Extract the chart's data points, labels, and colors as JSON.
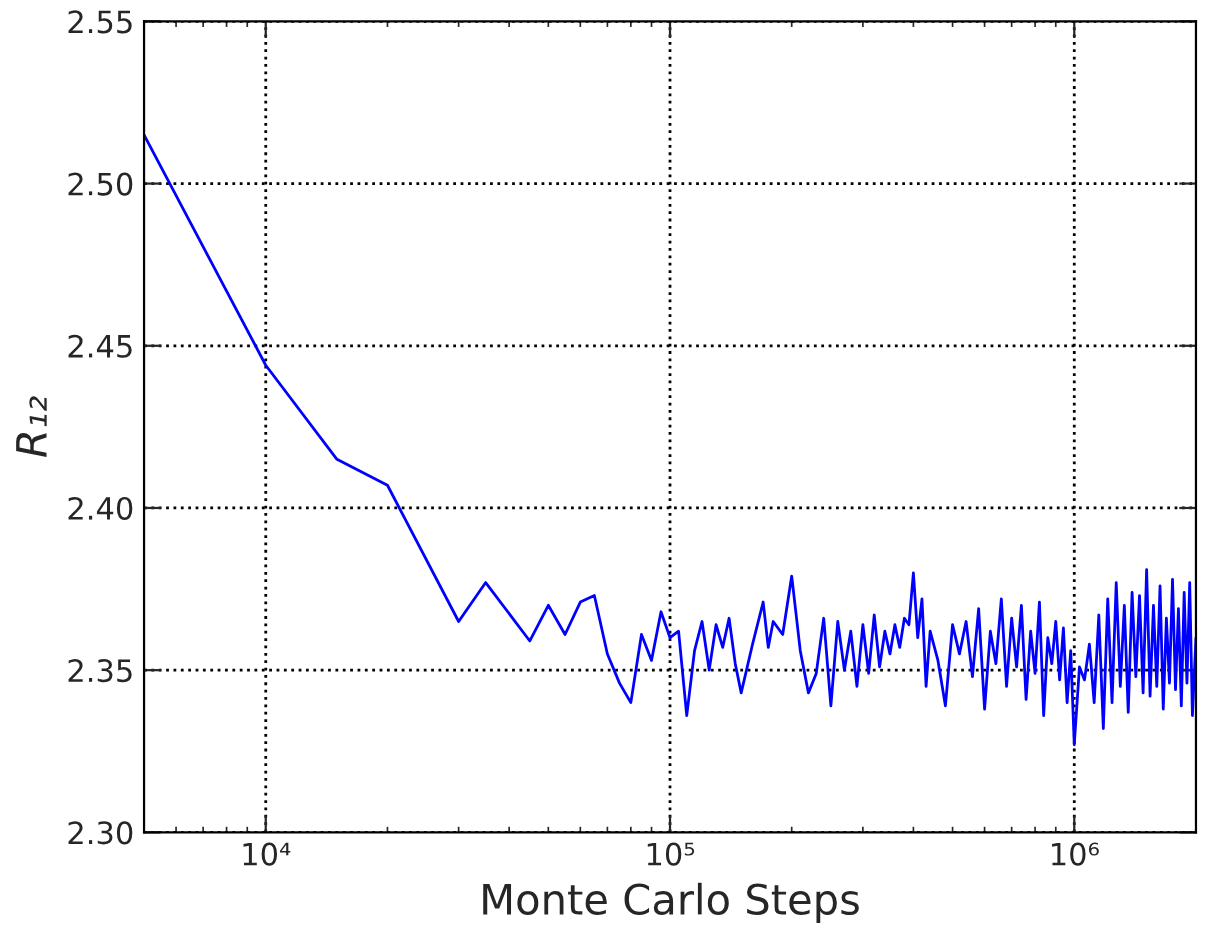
{
  "chart_data": {
    "type": "line",
    "xlabel": "Monte Carlo Steps",
    "ylabel": "R₁₂",
    "log": "x",
    "grid": true,
    "marker": "none",
    "line_style": "solid",
    "xlim": [
      5000,
      2000000
    ],
    "xticks": [
      {
        "value": 10000,
        "label": "10⁴"
      },
      {
        "value": 100000,
        "label": "10⁵"
      },
      {
        "value": 1000000,
        "label": "10⁶"
      }
    ],
    "ylim": [
      2.3,
      2.55
    ],
    "yticks": [
      {
        "value": 2.3,
        "label": "2.30"
      },
      {
        "value": 2.35,
        "label": "2.35"
      },
      {
        "value": 2.4,
        "label": "2.40"
      },
      {
        "value": 2.45,
        "label": "2.45"
      },
      {
        "value": 2.5,
        "label": "2.50"
      },
      {
        "value": 2.55,
        "label": "2.55"
      }
    ],
    "series": [
      {
        "color": "#0000ff",
        "x": [
          5000,
          10000,
          15000,
          20000,
          30000,
          35000,
          45000,
          50000,
          55000,
          60000,
          65000,
          70000,
          75000,
          80000,
          85000,
          90000,
          95000,
          100000,
          105000,
          110000,
          115000,
          120000,
          125000,
          130000,
          135000,
          140000,
          145000,
          150000,
          160000,
          170000,
          175000,
          180000,
          190000,
          200000,
          210000,
          220000,
          230000,
          240000,
          250000,
          260000,
          270000,
          280000,
          290000,
          300000,
          310000,
          320000,
          330000,
          340000,
          350000,
          360000,
          370000,
          380000,
          390000,
          400000,
          410000,
          420000,
          430000,
          440000,
          460000,
          480000,
          500000,
          520000,
          540000,
          560000,
          580000,
          600000,
          620000,
          640000,
          660000,
          680000,
          700000,
          720000,
          740000,
          760000,
          780000,
          800000,
          820000,
          840000,
          860000,
          880000,
          900000,
          920000,
          940000,
          960000,
          980000,
          1000000,
          1030000,
          1060000,
          1090000,
          1120000,
          1150000,
          1180000,
          1210000,
          1240000,
          1270000,
          1300000,
          1330000,
          1360000,
          1390000,
          1420000,
          1450000,
          1480000,
          1510000,
          1540000,
          1570000,
          1600000,
          1630000,
          1660000,
          1690000,
          1720000,
          1750000,
          1780000,
          1810000,
          1840000,
          1870000,
          1900000,
          1930000,
          1960000,
          2000000
        ],
        "values": [
          2.515,
          2.444,
          2.415,
          2.407,
          2.365,
          2.377,
          2.359,
          2.37,
          2.361,
          2.371,
          2.373,
          2.355,
          2.346,
          2.34,
          2.361,
          2.353,
          2.368,
          2.36,
          2.362,
          2.336,
          2.356,
          2.365,
          2.35,
          2.364,
          2.357,
          2.366,
          2.352,
          2.343,
          2.358,
          2.371,
          2.357,
          2.365,
          2.361,
          2.379,
          2.356,
          2.343,
          2.349,
          2.366,
          2.339,
          2.365,
          2.35,
          2.362,
          2.345,
          2.364,
          2.349,
          2.367,
          2.351,
          2.362,
          2.355,
          2.364,
          2.357,
          2.366,
          2.364,
          2.38,
          2.36,
          2.372,
          2.345,
          2.362,
          2.353,
          2.339,
          2.364,
          2.355,
          2.365,
          2.348,
          2.369,
          2.338,
          2.362,
          2.352,
          2.372,
          2.345,
          2.366,
          2.351,
          2.37,
          2.341,
          2.362,
          2.349,
          2.371,
          2.336,
          2.36,
          2.352,
          2.365,
          2.347,
          2.363,
          2.34,
          2.356,
          2.327,
          2.351,
          2.347,
          2.358,
          2.34,
          2.367,
          2.332,
          2.372,
          2.34,
          2.377,
          2.345,
          2.37,
          2.337,
          2.374,
          2.348,
          2.373,
          2.343,
          2.381,
          2.342,
          2.37,
          2.345,
          2.376,
          2.338,
          2.366,
          2.346,
          2.378,
          2.344,
          2.369,
          2.339,
          2.374,
          2.346,
          2.377,
          2.336,
          2.36
        ]
      }
    ]
  }
}
